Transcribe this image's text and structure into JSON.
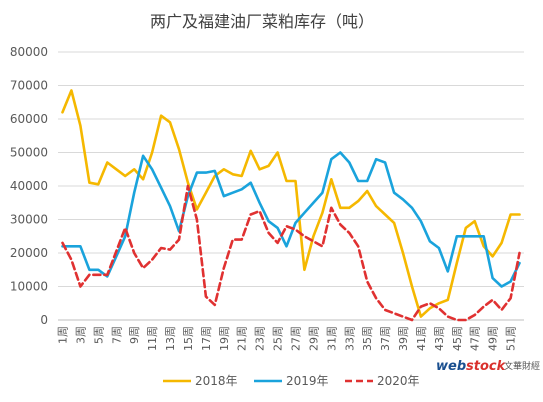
{
  "chart_data": {
    "type": "line",
    "title": "两广及福建油厂菜粕库存（吨）",
    "xlabel": "",
    "ylabel": "",
    "ylim": [
      0,
      80000
    ],
    "yticks": [
      "0",
      "10000",
      "20000",
      "30000",
      "40000",
      "50000",
      "60000",
      "70000",
      "80000"
    ],
    "x": [
      "1周",
      "2周",
      "3周",
      "4周",
      "5周",
      "6周",
      "7周",
      "8周",
      "9周",
      "10周",
      "11周",
      "12周",
      "13周",
      "14周",
      "15周",
      "16周",
      "17周",
      "18周",
      "19周",
      "20周",
      "21周",
      "22周",
      "23周",
      "24周",
      "25周",
      "26周",
      "27周",
      "28周",
      "29周",
      "30周",
      "31周",
      "32周",
      "33周",
      "34周",
      "35周",
      "36周",
      "37周",
      "38周",
      "39周",
      "40周",
      "41周",
      "42周",
      "43周",
      "44周",
      "45周",
      "46周",
      "47周",
      "48周",
      "49周",
      "50周",
      "51周",
      "52周"
    ],
    "xtick_labels": [
      "1周",
      "3周",
      "5周",
      "7周",
      "9周",
      "11周",
      "13周",
      "15周",
      "17周",
      "19周",
      "21周",
      "23周",
      "25周",
      "27周",
      "29周",
      "31周",
      "33周",
      "35周",
      "37周",
      "39周",
      "41周",
      "43周",
      "45周",
      "47周",
      "49周",
      "51周"
    ],
    "grid": true,
    "legend_position": "bottom",
    "series": [
      {
        "name": "2018年",
        "color": "#f5b800",
        "dash": "solid",
        "values": [
          62000,
          68500,
          58000,
          41000,
          40500,
          47000,
          45000,
          43000,
          45000,
          42000,
          50000,
          61000,
          59000,
          51000,
          41000,
          33000,
          38000,
          43000,
          45000,
          43500,
          43000,
          50500,
          45000,
          46000,
          50000,
          41500,
          41500,
          15000,
          25000,
          32000,
          42000,
          33500,
          33500,
          35500,
          38500,
          34000,
          31500,
          29000,
          20000,
          10000,
          1000,
          3500,
          5000,
          6000,
          17000,
          27500,
          29500,
          22000,
          19000,
          23000,
          31500,
          31500
        ]
      },
      {
        "name": "2019年",
        "color": "#1aa3dc",
        "dash": "solid",
        "values": [
          22000,
          22000,
          22000,
          15000,
          15000,
          13000,
          19000,
          25000,
          38000,
          49000,
          45000,
          39500,
          34000,
          26500,
          37000,
          44000,
          44000,
          44500,
          37000,
          38000,
          39000,
          41000,
          35000,
          29500,
          27500,
          22000,
          29000,
          32000,
          35000,
          38000,
          48000,
          50000,
          47000,
          41500,
          41500,
          48000,
          47000,
          38000,
          36000,
          33500,
          29500,
          23500,
          21500,
          14500,
          25000,
          25000,
          25000,
          25000,
          12500,
          10000,
          11500,
          17000
        ]
      },
      {
        "name": "2020年",
        "color": "#e03131",
        "dash": "dashed",
        "values": [
          23000,
          18000,
          10000,
          13500,
          13500,
          13500,
          20500,
          27500,
          20000,
          15500,
          18000,
          21500,
          21000,
          24000,
          40000,
          30000,
          7000,
          4500,
          15500,
          24000,
          24000,
          31500,
          32500,
          26000,
          23000,
          28000,
          27000,
          25000,
          23500,
          22000,
          33500,
          28500,
          26000,
          22000,
          11500,
          6500,
          3000,
          2000,
          1000,
          0,
          4000,
          5000,
          3500,
          1000,
          0,
          0,
          1500,
          4000,
          6000,
          3000,
          6500,
          20000
        ]
      }
    ]
  },
  "watermark": {
    "brand_web": "web",
    "brand_stock": "stock",
    "brand_cn": "文華財經"
  }
}
